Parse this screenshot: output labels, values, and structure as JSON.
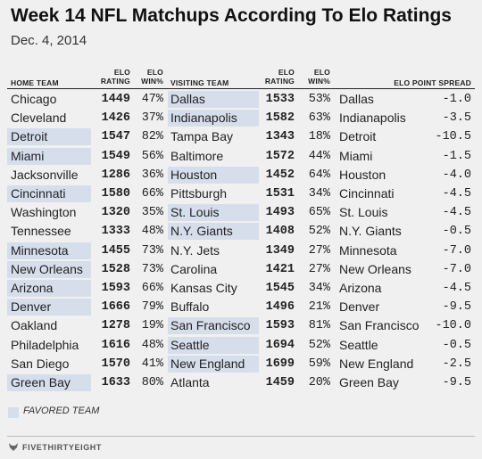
{
  "title": "Week 14 NFL Matchups According To Elo Ratings",
  "subtitle": "Dec. 4, 2014",
  "chart_data": {
    "type": "table",
    "columns": {
      "home_team": "HOME TEAM",
      "home_elo_rating": [
        "ELO",
        "RATING"
      ],
      "home_elo_win": [
        "ELO",
        "WIN%"
      ],
      "visiting_team": "VISITING TEAM",
      "visit_elo_rating": [
        "ELO",
        "RATING"
      ],
      "visit_elo_win": [
        "ELO",
        "WIN%"
      ],
      "point_spread": "ELO POINT SPREAD"
    },
    "rows": [
      {
        "home": "Chicago",
        "home_elo": "1449",
        "home_win": "47%",
        "visitor": "Dallas",
        "visit_elo": "1533",
        "visit_win": "53%",
        "fav_team": "Dallas",
        "spread": "-1.0",
        "favored": "visitor"
      },
      {
        "home": "Cleveland",
        "home_elo": "1426",
        "home_win": "37%",
        "visitor": "Indianapolis",
        "visit_elo": "1582",
        "visit_win": "63%",
        "fav_team": "Indianapolis",
        "spread": "-3.5",
        "favored": "visitor"
      },
      {
        "home": "Detroit",
        "home_elo": "1547",
        "home_win": "82%",
        "visitor": "Tampa Bay",
        "visit_elo": "1343",
        "visit_win": "18%",
        "fav_team": "Detroit",
        "spread": "-10.5",
        "favored": "home"
      },
      {
        "home": "Miami",
        "home_elo": "1549",
        "home_win": "56%",
        "visitor": "Baltimore",
        "visit_elo": "1572",
        "visit_win": "44%",
        "fav_team": "Miami",
        "spread": "-1.5",
        "favored": "home"
      },
      {
        "home": "Jacksonville",
        "home_elo": "1286",
        "home_win": "36%",
        "visitor": "Houston",
        "visit_elo": "1452",
        "visit_win": "64%",
        "fav_team": "Houston",
        "spread": "-4.0",
        "favored": "visitor"
      },
      {
        "home": "Cincinnati",
        "home_elo": "1580",
        "home_win": "66%",
        "visitor": "Pittsburgh",
        "visit_elo": "1531",
        "visit_win": "34%",
        "fav_team": "Cincinnati",
        "spread": "-4.5",
        "favored": "home"
      },
      {
        "home": "Washington",
        "home_elo": "1320",
        "home_win": "35%",
        "visitor": "St. Louis",
        "visit_elo": "1493",
        "visit_win": "65%",
        "fav_team": "St. Louis",
        "spread": "-4.5",
        "favored": "visitor"
      },
      {
        "home": "Tennessee",
        "home_elo": "1333",
        "home_win": "48%",
        "visitor": "N.Y. Giants",
        "visit_elo": "1408",
        "visit_win": "52%",
        "fav_team": "N.Y. Giants",
        "spread": "-0.5",
        "favored": "visitor"
      },
      {
        "home": "Minnesota",
        "home_elo": "1455",
        "home_win": "73%",
        "visitor": "N.Y. Jets",
        "visit_elo": "1349",
        "visit_win": "27%",
        "fav_team": "Minnesota",
        "spread": "-7.0",
        "favored": "home"
      },
      {
        "home": "New Orleans",
        "home_elo": "1528",
        "home_win": "73%",
        "visitor": "Carolina",
        "visit_elo": "1421",
        "visit_win": "27%",
        "fav_team": "New Orleans",
        "spread": "-7.0",
        "favored": "home"
      },
      {
        "home": "Arizona",
        "home_elo": "1593",
        "home_win": "66%",
        "visitor": "Kansas City",
        "visit_elo": "1545",
        "visit_win": "34%",
        "fav_team": "Arizona",
        "spread": "-4.5",
        "favored": "home"
      },
      {
        "home": "Denver",
        "home_elo": "1666",
        "home_win": "79%",
        "visitor": "Buffalo",
        "visit_elo": "1496",
        "visit_win": "21%",
        "fav_team": "Denver",
        "spread": "-9.5",
        "favored": "home"
      },
      {
        "home": "Oakland",
        "home_elo": "1278",
        "home_win": "19%",
        "visitor": "San Francisco",
        "visit_elo": "1593",
        "visit_win": "81%",
        "fav_team": "San Francisco",
        "spread": "-10.0",
        "favored": "visitor"
      },
      {
        "home": "Philadelphia",
        "home_elo": "1616",
        "home_win": "48%",
        "visitor": "Seattle",
        "visit_elo": "1694",
        "visit_win": "52%",
        "fav_team": "Seattle",
        "spread": "-0.5",
        "favored": "visitor"
      },
      {
        "home": "San Diego",
        "home_elo": "1570",
        "home_win": "41%",
        "visitor": "New England",
        "visit_elo": "1699",
        "visit_win": "59%",
        "fav_team": "New England",
        "spread": "-2.5",
        "favored": "visitor"
      },
      {
        "home": "Green Bay",
        "home_elo": "1633",
        "home_win": "80%",
        "visitor": "Atlanta",
        "visit_elo": "1459",
        "visit_win": "20%",
        "fav_team": "Green Bay",
        "spread": "-9.5",
        "favored": "home"
      }
    ]
  },
  "legend": {
    "label": "FAVORED TEAM",
    "color": "#d6deec"
  },
  "footer": {
    "brand": "FIVETHIRTYEIGHT",
    "icon": "fivethirtyeight-fox-icon"
  }
}
